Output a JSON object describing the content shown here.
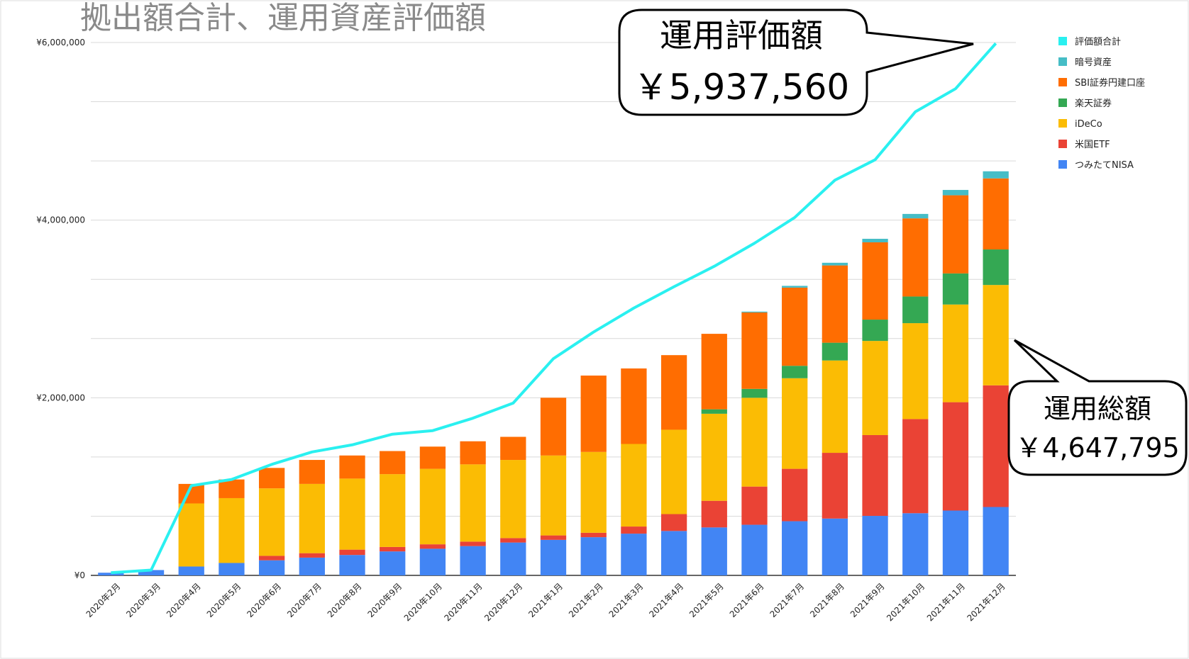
{
  "chart_data": {
    "type": "bar",
    "stacked": true,
    "title": "拠出額合計、運用資産評価額",
    "categories": [
      "2020年2月",
      "2020年3月",
      "2020年4月",
      "2020年5月",
      "2020年6月",
      "2020年7月",
      "2020年8月",
      "2020年9月",
      "2020年10月",
      "2020年11月",
      "2020年12月",
      "2021年1月",
      "2021年2月",
      "2021年3月",
      "2021年4月",
      "2021年5月",
      "2021年6月",
      "2021年7月",
      "2021年8月",
      "2021年9月",
      "2021年10月",
      "2021年11月",
      "2021年12月"
    ],
    "yticks": [
      "¥0",
      "¥2,000,000",
      "¥4,000,000",
      "¥6,000,000"
    ],
    "ylim": [
      0,
      6000000
    ],
    "series": [
      {
        "name": "つみたてNISA",
        "color": "#4285F4",
        "values": [
          30000,
          60000,
          100000,
          140000,
          170000,
          200000,
          230000,
          270000,
          300000,
          330000,
          370000,
          400000,
          430000,
          470000,
          500000,
          540000,
          570000,
          610000,
          640000,
          670000,
          700000,
          730000,
          770000
        ]
      },
      {
        "name": "米国ETF",
        "color": "#EA4335",
        "values": [
          0,
          0,
          0,
          0,
          50000,
          50000,
          60000,
          50000,
          50000,
          50000,
          50000,
          50000,
          50000,
          80000,
          190000,
          300000,
          430000,
          590000,
          740000,
          910000,
          1060000,
          1220000,
          1370000
        ]
      },
      {
        "name": "iDeCo",
        "color": "#FBBC04",
        "values": [
          0,
          0,
          710000,
          730000,
          760000,
          780000,
          800000,
          820000,
          850000,
          870000,
          880000,
          900000,
          910000,
          930000,
          950000,
          980000,
          1000000,
          1020000,
          1040000,
          1060000,
          1080000,
          1100000,
          1130000
        ]
      },
      {
        "name": "楽天証券",
        "color": "#34A853",
        "values": [
          0,
          0,
          0,
          0,
          0,
          0,
          0,
          0,
          0,
          0,
          0,
          0,
          0,
          0,
          0,
          50000,
          100000,
          140000,
          200000,
          240000,
          300000,
          350000,
          400000
        ]
      },
      {
        "name": "SBI証券円建口座",
        "color": "#FF6D01",
        "values": [
          0,
          0,
          220000,
          210000,
          230000,
          270000,
          260000,
          260000,
          250000,
          260000,
          260000,
          650000,
          860000,
          850000,
          840000,
          850000,
          860000,
          880000,
          870000,
          870000,
          880000,
          880000,
          800000
        ]
      },
      {
        "name": "暗号資産",
        "color": "#46BDC6",
        "values": [
          0,
          0,
          0,
          0,
          0,
          0,
          0,
          0,
          0,
          0,
          0,
          0,
          0,
          0,
          0,
          0,
          10000,
          20000,
          30000,
          40000,
          50000,
          60000,
          80000
        ]
      }
    ],
    "line": {
      "name": "評価額合計",
      "color": "#2AF0F0",
      "values": [
        30000,
        60000,
        1010000,
        1080000,
        1250000,
        1390000,
        1470000,
        1590000,
        1630000,
        1770000,
        1940000,
        2440000,
        2740000,
        3010000,
        3250000,
        3480000,
        3740000,
        4030000,
        4450000,
        4680000,
        5220000,
        5480000,
        5990000
      ]
    },
    "legend_position": "right",
    "grid": true
  },
  "callouts": {
    "top_title": "運用評価額",
    "top_value": "￥5,937,560",
    "right_title": "運用総額",
    "right_value": "￥4,647,795"
  }
}
